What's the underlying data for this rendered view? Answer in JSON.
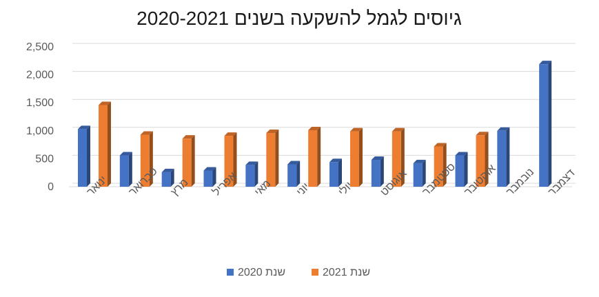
{
  "chart_data": {
    "type": "bar",
    "title": "גיוסים לגמל להשקעה בשנים 2020-2021",
    "categories": [
      "ינואר",
      "פברואר",
      "מרץ",
      "אפריל",
      "מאי",
      "יוני",
      "יולי",
      "אוגוסט",
      "ספטמבר",
      "אוקטובר",
      "נובמבר",
      "דצמבר"
    ],
    "series": [
      {
        "name": "שנת 2020",
        "color": "#4472C4",
        "values": [
          1030,
          560,
          260,
          290,
          390,
          400,
          440,
          480,
          420,
          560,
          1000,
          2190
        ]
      },
      {
        "name": "שנת 2021",
        "color": "#ED7D31",
        "values": [
          1460,
          930,
          860,
          910,
          960,
          1010,
          990,
          990,
          720,
          920,
          null,
          null
        ]
      }
    ],
    "yticks": [
      "0",
      "500",
      "1,000",
      "1,500",
      "2,000",
      "2,500"
    ],
    "ylim": [
      0,
      2500
    ],
    "grid": true,
    "legend_position": "bottom"
  }
}
